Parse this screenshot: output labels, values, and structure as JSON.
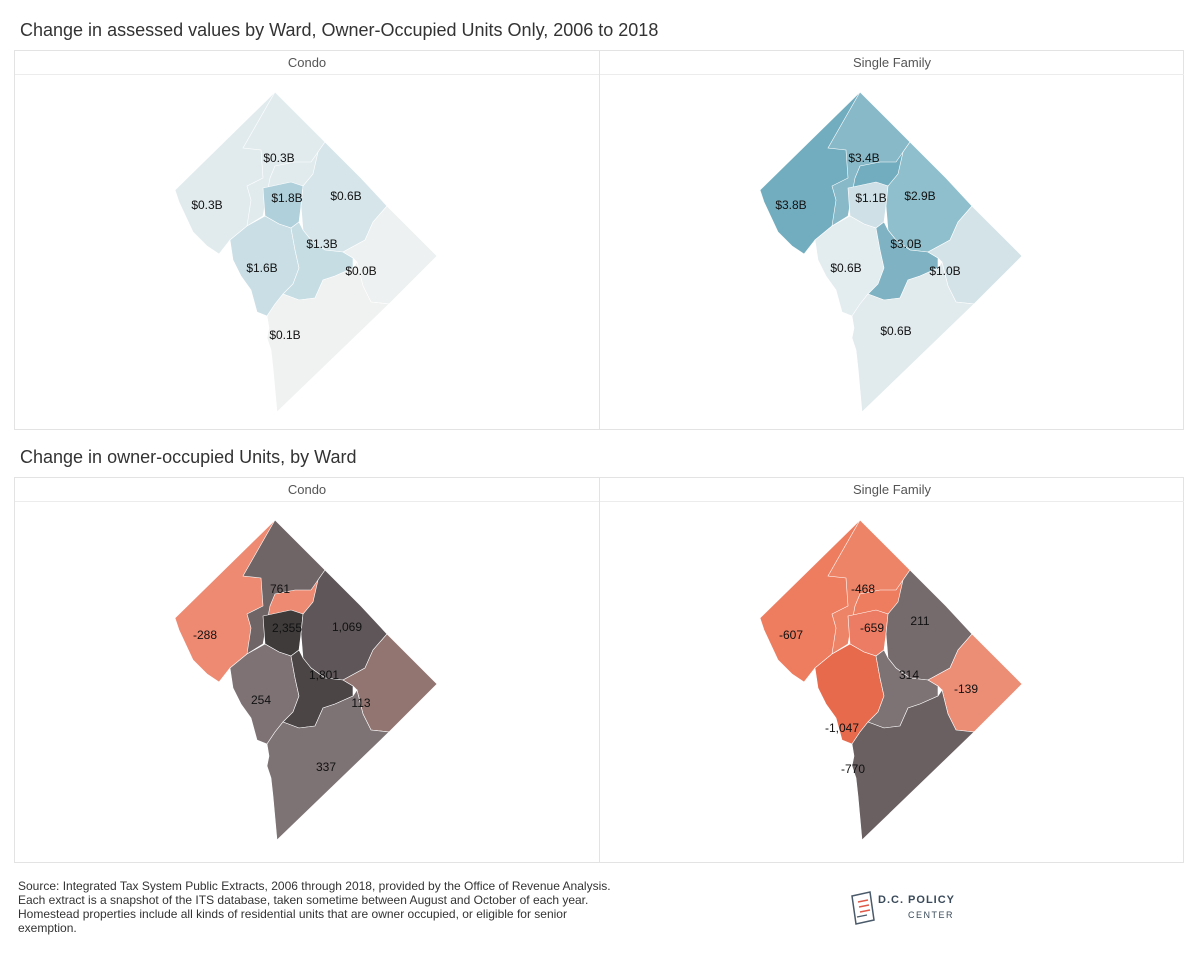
{
  "titles": {
    "top": "Change in assessed values by Ward, Owner-Occupied Units Only, 2006 to 2018",
    "bottom": "Change in owner-occupied Units, by Ward"
  },
  "panels": {
    "condo": "Condo",
    "single_family": "Single Family"
  },
  "maps": {
    "value_condo": {
      "colors": {
        "w1": "#b0d1dc",
        "w2": "#c9dee5",
        "w3": "#e1ebee",
        "w4": "#e1ebee",
        "w5": "#d6e5ea",
        "w6": "#c6dde4",
        "w7": "#eef1f1",
        "w8": "#f0f1f1"
      },
      "labels": {
        "w1": "$1.8B",
        "w2": "$1.6B",
        "w3": "$0.3B",
        "w4": "$0.3B",
        "w5": "$0.6B",
        "w6": "$1.3B",
        "w7": "$0.0B",
        "w8": "$0.1B"
      }
    },
    "value_sf": {
      "colors": {
        "w1": "#cfe1e7",
        "w2": "#e3ecef",
        "w3": "#72adbf",
        "w4": "#88b9c8",
        "w5": "#8fbfcc",
        "w6": "#7fb3c3",
        "w7": "#d4e3e8",
        "w8": "#e1eaed"
      },
      "labels": {
        "w1": "$1.1B",
        "w2": "$0.6B",
        "w3": "$3.8B",
        "w4": "$3.4B",
        "w5": "$2.9B",
        "w6": "$3.0B",
        "w7": "$1.0B",
        "w8": "$0.6B"
      }
    },
    "units_condo": {
      "colors": {
        "w1": "#3f3b3b",
        "w2": "#7e7275",
        "w3": "#ee8a72",
        "w4": "#6f6466",
        "w5": "#5e5658",
        "w6": "#4b4546",
        "w7": "#927570",
        "w8": "#7d7274"
      },
      "labels": {
        "w1": "2,355",
        "w2": "254",
        "w3": "-288",
        "w4": "761",
        "w5": "1,069",
        "w6": "1,801",
        "w7": "113",
        "w8": "337"
      }
    },
    "units_sf": {
      "colors": {
        "w1": "#ec7c63",
        "w2": "#e86a4d",
        "w3": "#ee7d60",
        "w4": "#ee8467",
        "w5": "#756b6d",
        "w6": "#7d7274",
        "w7": "#ec8d76",
        "w8": "#6a6062"
      },
      "labels": {
        "w1": "-659",
        "w2": "-1,047",
        "w3": "-607",
        "w4": "-468",
        "w5": "211",
        "w6": "314",
        "w7": "-139",
        "w8": "-770"
      }
    }
  },
  "source": "Source: Integrated Tax System Public Extracts, 2006 through 2018, provided by the Office of Revenue Analysis. Each extract is a snapshot of the ITS database, taken sometime between August and October of each year. Homestead properties include all kinds of residential units that are owner occupied, or eligible for senior exemption.",
  "logo": {
    "title": "D.C. POLICY",
    "sub": "CENTER"
  }
}
